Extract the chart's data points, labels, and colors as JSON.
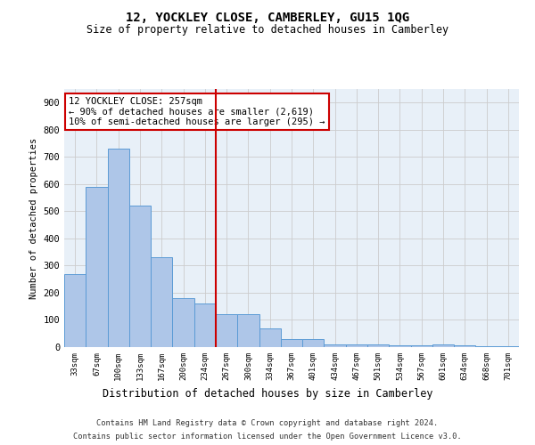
{
  "title": "12, YOCKLEY CLOSE, CAMBERLEY, GU15 1QG",
  "subtitle": "Size of property relative to detached houses in Camberley",
  "xlabel": "Distribution of detached houses by size in Camberley",
  "ylabel": "Number of detached properties",
  "categories": [
    "33sqm",
    "67sqm",
    "100sqm",
    "133sqm",
    "167sqm",
    "200sqm",
    "234sqm",
    "267sqm",
    "300sqm",
    "334sqm",
    "367sqm",
    "401sqm",
    "434sqm",
    "467sqm",
    "501sqm",
    "534sqm",
    "567sqm",
    "601sqm",
    "634sqm",
    "668sqm",
    "701sqm"
  ],
  "values": [
    270,
    590,
    730,
    520,
    330,
    180,
    160,
    120,
    120,
    70,
    30,
    30,
    10,
    10,
    10,
    5,
    5,
    10,
    5,
    2,
    2
  ],
  "bar_color": "#aec6e8",
  "bar_edge_color": "#5b9bd5",
  "vline_color": "#cc0000",
  "annotation_text": "12 YOCKLEY CLOSE: 257sqm\n← 90% of detached houses are smaller (2,619)\n10% of semi-detached houses are larger (295) →",
  "annotation_box_color": "#ffffff",
  "annotation_box_edge_color": "#cc0000",
  "ylim": [
    0,
    950
  ],
  "yticks": [
    0,
    100,
    200,
    300,
    400,
    500,
    600,
    700,
    800,
    900
  ],
  "grid_color": "#cccccc",
  "background_color": "#e8f0f8",
  "footer_line1": "Contains HM Land Registry data © Crown copyright and database right 2024.",
  "footer_line2": "Contains public sector information licensed under the Open Government Licence v3.0."
}
